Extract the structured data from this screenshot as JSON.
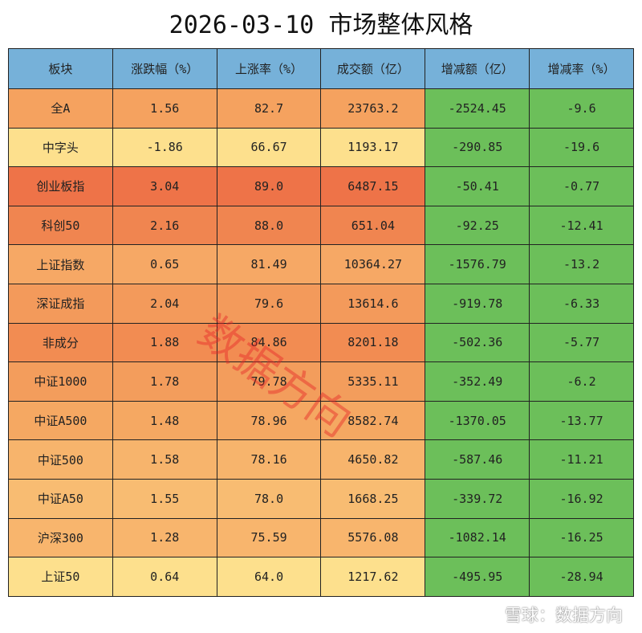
{
  "title": "2026-03-10 市场整体风格",
  "table": {
    "header": [
      "板块",
      "涨跌幅（%）",
      "上涨率（%）",
      "成交额（亿）",
      "增减额（亿）",
      "增减率（%）"
    ],
    "rows": [
      [
        "全A",
        "1.56",
        "82.7",
        "23763.2",
        "-2524.45",
        "-9.6"
      ],
      [
        "中字头",
        "-1.86",
        "66.67",
        "1193.17",
        "-290.85",
        "-19.6"
      ],
      [
        "创业板指",
        "3.04",
        "89.0",
        "6487.15",
        "-50.41",
        "-0.77"
      ],
      [
        "科创50",
        "2.16",
        "88.0",
        "651.04",
        "-92.25",
        "-12.41"
      ],
      [
        "上证指数",
        "0.65",
        "81.49",
        "10364.27",
        "-1576.79",
        "-13.2"
      ],
      [
        "深证成指",
        "2.04",
        "79.6",
        "13614.6",
        "-919.78",
        "-6.33"
      ],
      [
        "非成分",
        "1.88",
        "84.86",
        "8201.18",
        "-502.36",
        "-5.77"
      ],
      [
        "中证1000",
        "1.78",
        "79.78",
        "5335.11",
        "-352.49",
        "-6.2"
      ],
      [
        "中证A500",
        "1.48",
        "78.96",
        "8582.74",
        "-1370.05",
        "-13.77"
      ],
      [
        "中证500",
        "1.58",
        "78.16",
        "4650.82",
        "-587.46",
        "-11.21"
      ],
      [
        "中证A50",
        "1.55",
        "78.0",
        "1668.25",
        "-339.72",
        "-16.92"
      ],
      [
        "沪深300",
        "1.28",
        "75.59",
        "5576.08",
        "-1082.14",
        "-16.25"
      ],
      [
        "上证50",
        "0.64",
        "64.0",
        "1217.62",
        "-495.95",
        "-28.94"
      ]
    ]
  },
  "watermark": "数据方向",
  "footer": "雪球：数据方向"
}
